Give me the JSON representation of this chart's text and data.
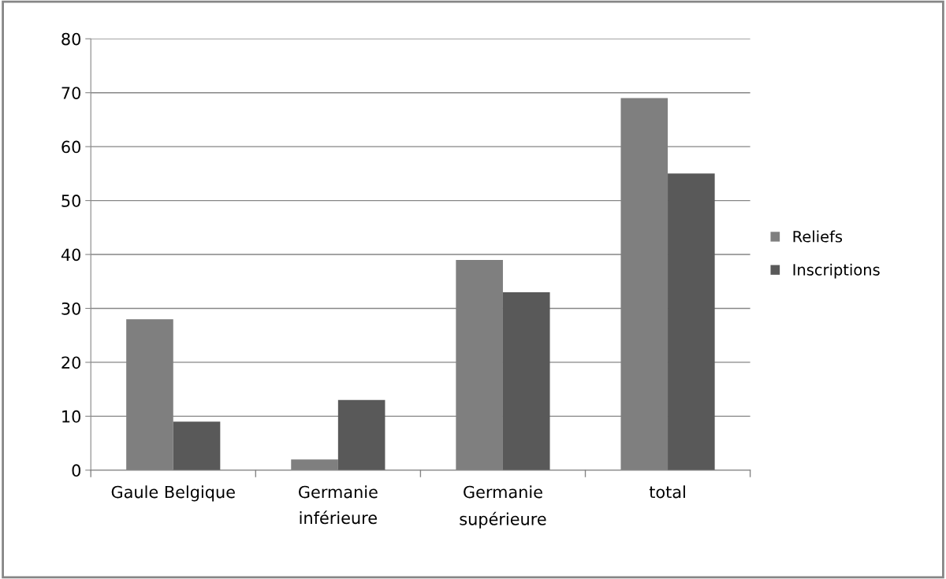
{
  "chart_data": {
    "type": "bar",
    "categories": [
      "Gaule Belgique",
      "Germanie inférieure",
      "Germanie supérieure",
      "total"
    ],
    "series": [
      {
        "name": "Reliefs",
        "color": "#7f7f7f",
        "values": [
          28,
          2,
          39,
          69
        ]
      },
      {
        "name": "Inscriptions",
        "color": "#595959",
        "values": [
          9,
          13,
          33,
          55
        ]
      }
    ],
    "ylim": [
      0,
      80
    ],
    "yticks": [
      0,
      10,
      20,
      30,
      40,
      50,
      60,
      70,
      80
    ],
    "grid": "y",
    "legend": "right"
  }
}
